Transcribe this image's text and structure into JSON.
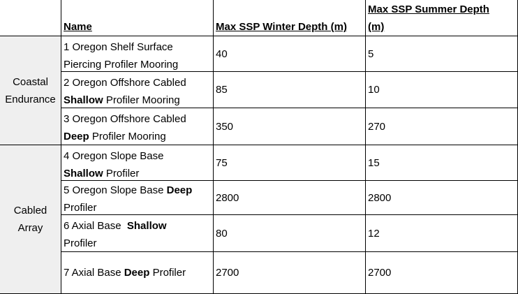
{
  "header": {
    "corner": "",
    "name": "Name",
    "winter": "Max SSP Winter Depth (m)",
    "summer_line1": "Max SSP Summer Depth",
    "summer_line2": "(m)"
  },
  "groups": [
    {
      "line1": "Coastal",
      "line2": "Endurance"
    },
    {
      "line1": "Cabled",
      "line2": "Array"
    }
  ],
  "rows": [
    {
      "name_l1_a": "1 Oregon Shelf Surface",
      "name_l2_a": "Piercing Profiler Mooring",
      "winter": "40",
      "summer": "5"
    },
    {
      "name_l1_a": "2 Oregon Offshore Cabled",
      "name_l2_b": "Shallow",
      "name_l2_c": " Profiler Mooring",
      "winter": "85",
      "summer": "10"
    },
    {
      "name_l1_a": "3 Oregon Offshore Cabled",
      "name_l2_b": "Deep",
      "name_l2_c": " Profiler Mooring",
      "winter": "350",
      "summer": "270"
    },
    {
      "name_l1_a": "4 Oregon Slope Base",
      "name_l2_b": "Shallow",
      "name_l2_c": " Profiler",
      "winter": "75",
      "summer": "15"
    },
    {
      "name_l1_a": "5 Oregon Slope Base ",
      "name_l1_b": "Deep",
      "name_l2_a": "Profiler",
      "winter": "2800",
      "summer": "2800"
    },
    {
      "name_l1_a": "6 Axial Base  ",
      "name_l1_b": "Shallow",
      "name_l2_a": "Profiler",
      "winter": "80",
      "summer": "12"
    },
    {
      "name_l1_a": "7 Axial Base ",
      "name_l1_b": "Deep",
      "name_l1_c": " Profiler",
      "winter": "2700",
      "summer": "2700"
    }
  ]
}
